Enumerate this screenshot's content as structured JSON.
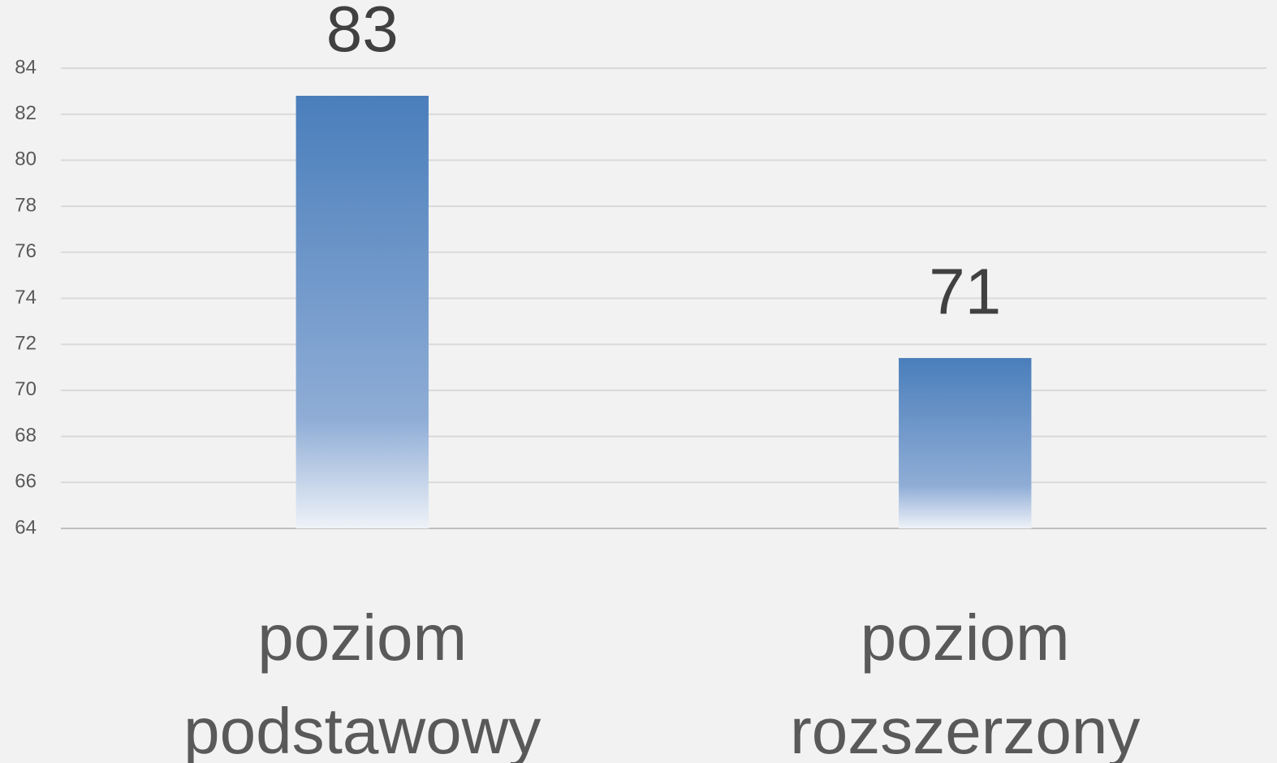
{
  "chart_data": {
    "type": "bar",
    "categories": [
      "poziom podstawowy",
      "poziom rozszerzony"
    ],
    "values": [
      82.8,
      71.4
    ],
    "value_labels": [
      "83",
      "71"
    ],
    "color": "#4a7ebb",
    "ylim": [
      64,
      84
    ],
    "yticks": [
      64,
      66,
      68,
      70,
      72,
      74,
      76,
      78,
      80,
      82,
      84
    ],
    "grid": true
  }
}
